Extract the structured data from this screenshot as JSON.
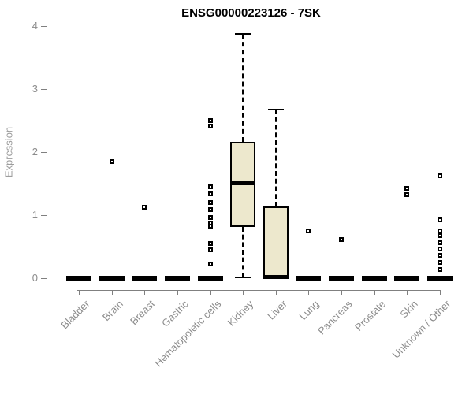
{
  "chart_data": {
    "type": "boxplot",
    "title": "ENSG00000223126 - 7SK",
    "ylabel": "Expression",
    "xlabel": "",
    "ylim": [
      0,
      4
    ],
    "yticks": [
      0,
      1,
      2,
      3,
      4
    ],
    "grid": false,
    "legend": "none",
    "colors": {
      "box_fill": "#ede8cd",
      "box_border": "#000000",
      "median": "#000000",
      "whisker": "#000000",
      "outlier_border": "#000000",
      "outlier_fill": "#ffffff",
      "axis": "#808080",
      "tick_label": "#8c8c8c",
      "title": "#000000",
      "background": "#ffffff"
    },
    "categories": [
      "Bladder",
      "Brain",
      "Breast",
      "Gastric",
      "Hematopoietic cells",
      "Kidney",
      "Liver",
      "Lung",
      "Pancreas",
      "Prostate",
      "Skin",
      "Unknown / Other"
    ],
    "boxes": [
      {
        "category": "Bladder",
        "whisker_low": 0,
        "q1": 0,
        "median": 0,
        "q3": 0,
        "whisker_high": 0,
        "outliers": []
      },
      {
        "category": "Brain",
        "whisker_low": 0,
        "q1": 0,
        "median": 0,
        "q3": 0,
        "whisker_high": 0,
        "outliers": [
          1.85
        ]
      },
      {
        "category": "Breast",
        "whisker_low": 0,
        "q1": 0,
        "median": 0,
        "q3": 0,
        "whisker_high": 0,
        "outliers": [
          1.12
        ]
      },
      {
        "category": "Gastric",
        "whisker_low": 0,
        "q1": 0,
        "median": 0,
        "q3": 0,
        "whisker_high": 0,
        "outliers": []
      },
      {
        "category": "Hematopoietic cells",
        "whisker_low": 0,
        "q1": 0,
        "median": 0,
        "q3": 0,
        "whisker_high": 0,
        "outliers": [
          2.5,
          2.41,
          1.45,
          1.34,
          1.2,
          1.09,
          0.96,
          0.88,
          0.82,
          0.55,
          0.45,
          0.22
        ]
      },
      {
        "category": "Kidney",
        "whisker_low": 0.01,
        "q1": 0.81,
        "median": 1.51,
        "q3": 2.16,
        "whisker_high": 3.87,
        "outliers": []
      },
      {
        "category": "Liver",
        "whisker_low": 0.02,
        "q1": 0.02,
        "median": 0.03,
        "q3": 1.14,
        "whisker_high": 2.68,
        "outliers": []
      },
      {
        "category": "Lung",
        "whisker_low": 0,
        "q1": 0,
        "median": 0,
        "q3": 0,
        "whisker_high": 0,
        "outliers": [
          0.75
        ]
      },
      {
        "category": "Pancreas",
        "whisker_low": 0,
        "q1": 0,
        "median": 0,
        "q3": 0,
        "whisker_high": 0,
        "outliers": [
          0.61
        ]
      },
      {
        "category": "Prostate",
        "whisker_low": 0,
        "q1": 0,
        "median": 0,
        "q3": 0,
        "whisker_high": 0,
        "outliers": []
      },
      {
        "category": "Skin",
        "whisker_low": 0,
        "q1": 0,
        "median": 0,
        "q3": 0,
        "whisker_high": 0,
        "outliers": [
          1.43,
          1.33
        ]
      },
      {
        "category": "Unknown / Other",
        "whisker_low": 0,
        "q1": 0,
        "median": 0,
        "q3": 0,
        "whisker_high": 0,
        "outliers": [
          1.63,
          0.93,
          0.75,
          0.68,
          0.56,
          0.46,
          0.36,
          0.25,
          0.14
        ]
      }
    ]
  }
}
